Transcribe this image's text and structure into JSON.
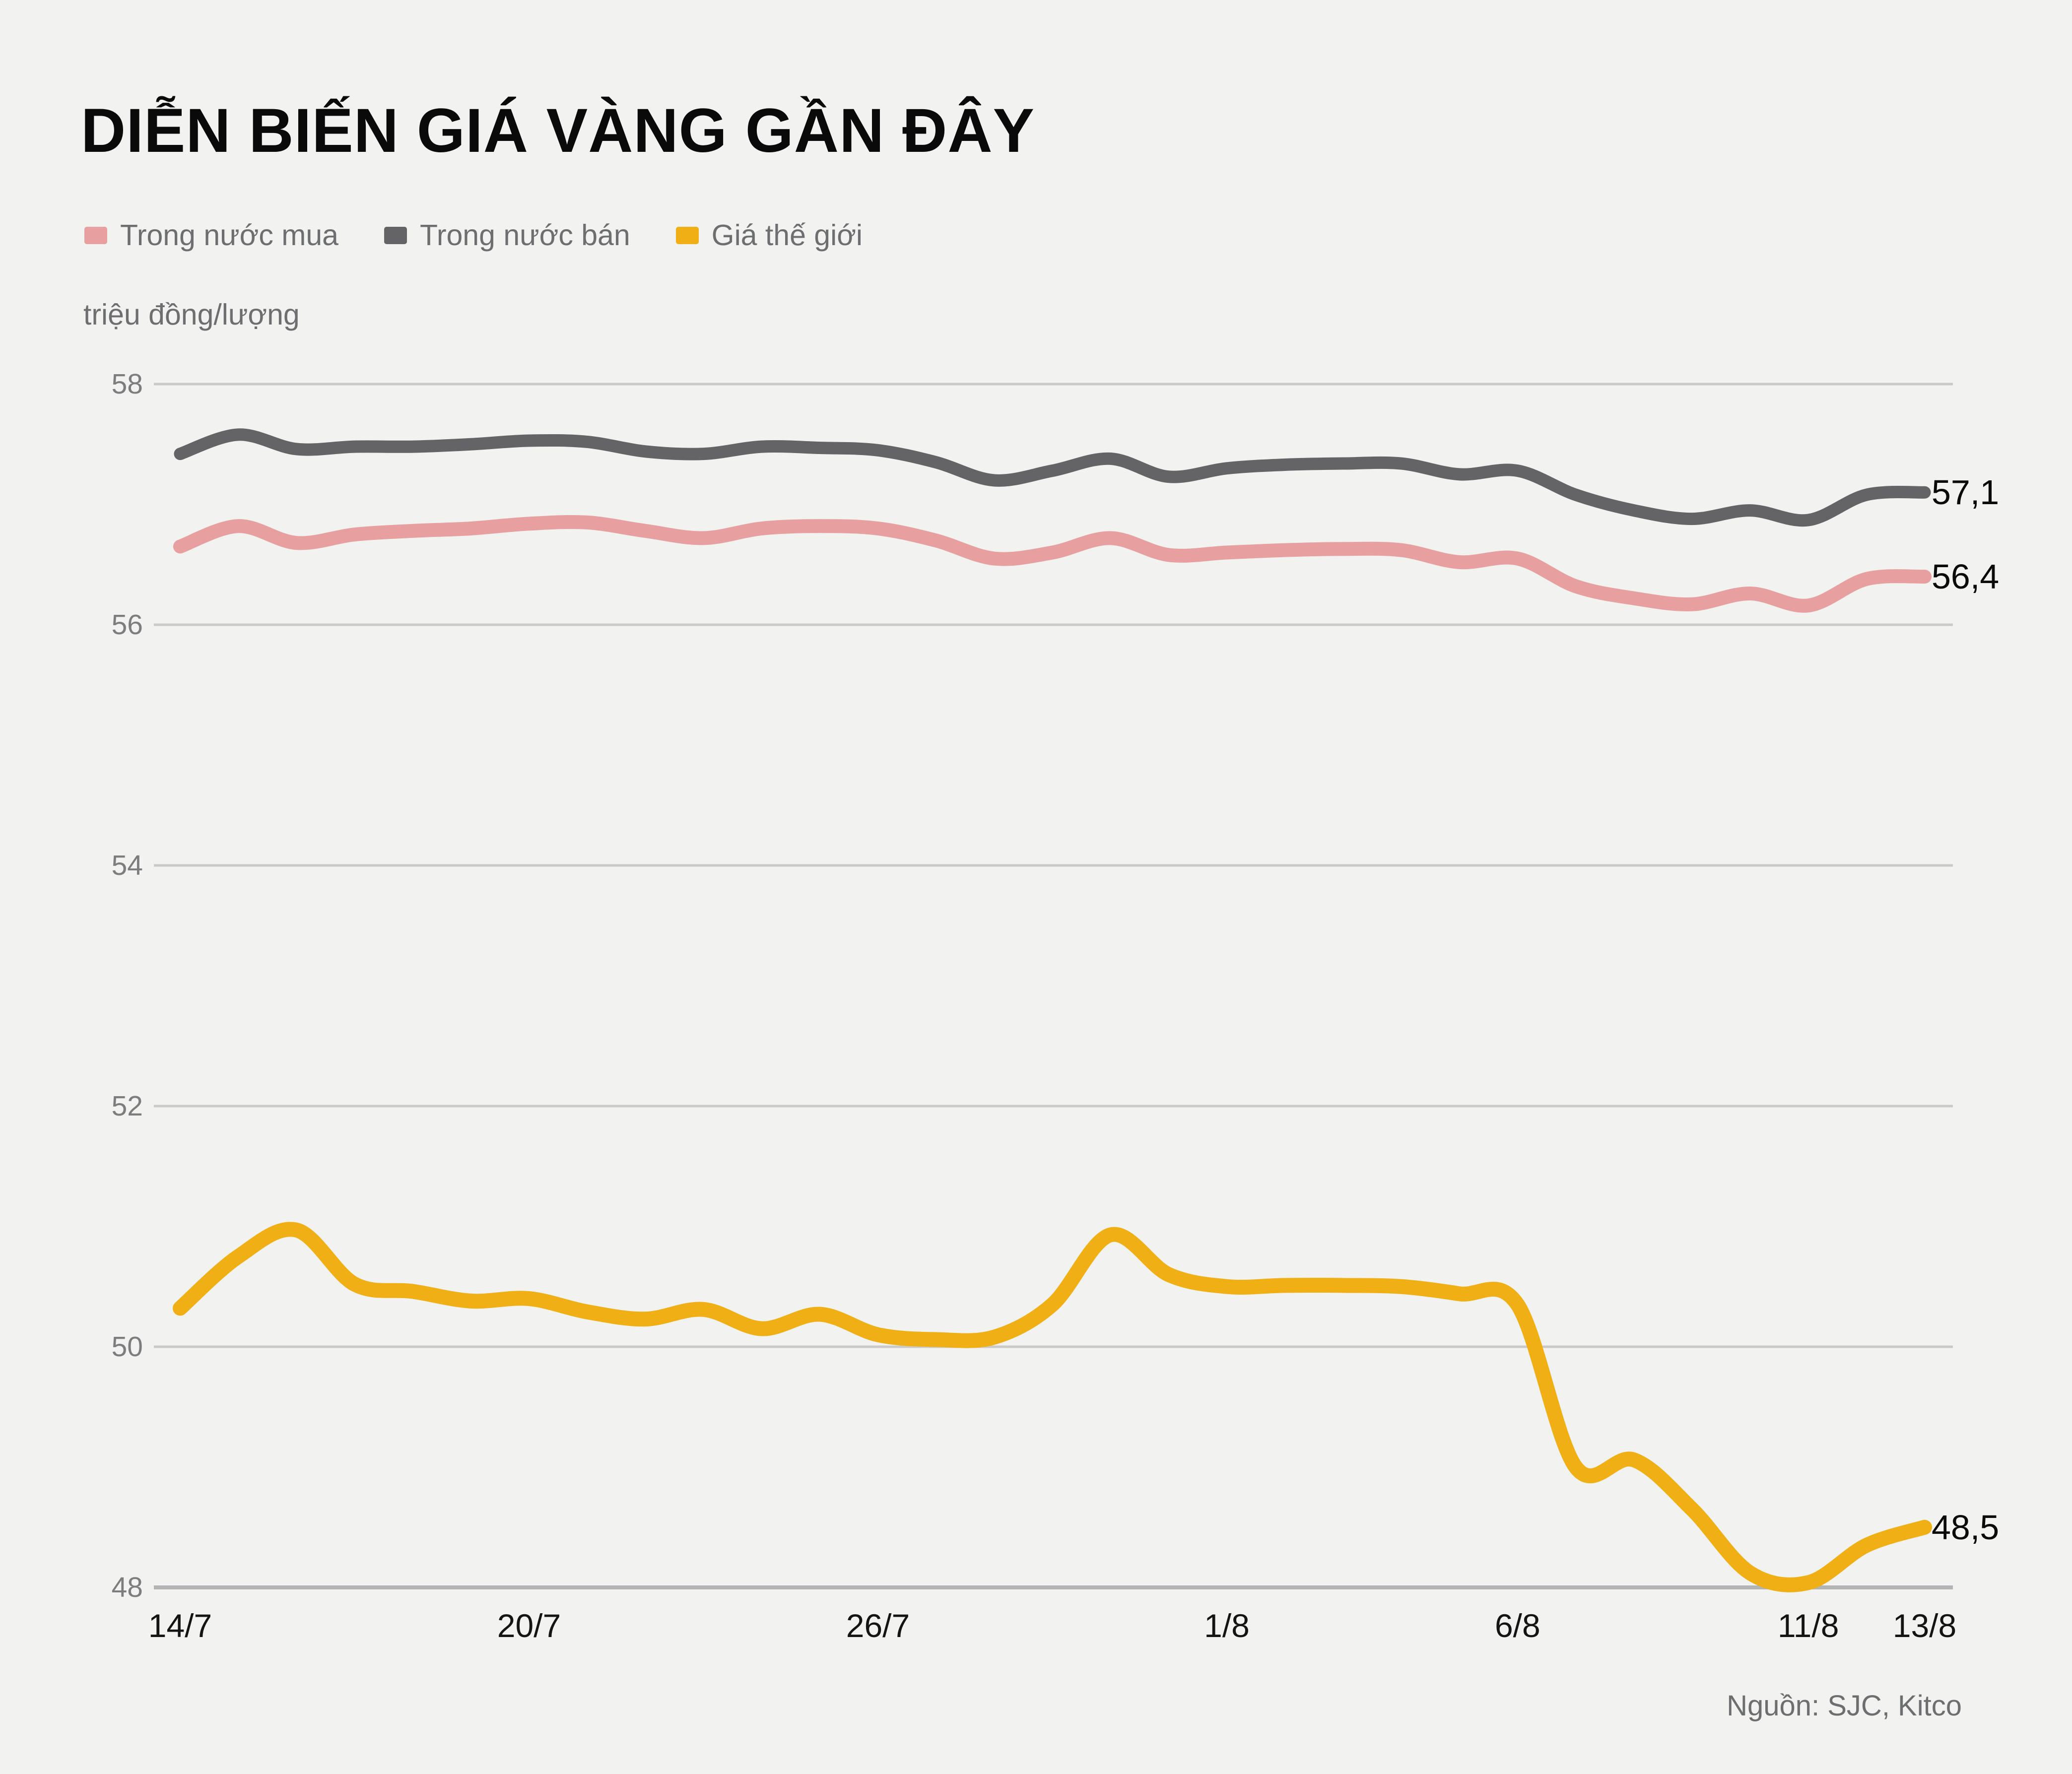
{
  "title": "DIỄN BIẾN GIÁ VÀNG GẦN ĐÂY",
  "unit_label": "triệu đồng/lượng",
  "source": "Nguồn: SJC, Kitco",
  "colors": {
    "background": "#f2f2f0",
    "gridline": "#c9cac8",
    "axis_line": "#b3b4b6",
    "y_tick_text": "#7c7d7f",
    "x_tick_text": "#141414",
    "legend_text": "#6d6e70"
  },
  "chart_data": {
    "type": "line",
    "title": "DIỄN BIẾN GIÁ VÀNG GẦN ĐÂY",
    "ylabel": "triệu đồng/lượng",
    "ylim": [
      48,
      58
    ],
    "yticks": [
      58,
      56,
      54,
      52,
      50,
      48
    ],
    "xticks": [
      "14/7",
      "20/7",
      "26/7",
      "1/8",
      "6/8",
      "11/8",
      "13/8"
    ],
    "grid": "horizontal",
    "legend_position": "top-left",
    "categories": [
      "14/7",
      "15/7",
      "16/7",
      "17/7",
      "18/7",
      "19/7",
      "20/7",
      "21/7",
      "22/7",
      "23/7",
      "24/7",
      "25/7",
      "26/7",
      "27/7",
      "28/7",
      "29/7",
      "30/7",
      "31/7",
      "1/8",
      "2/8",
      "3/8",
      "4/8",
      "5/8",
      "6/8",
      "7/8",
      "8/8",
      "9/8",
      "10/8",
      "11/8",
      "12/8",
      "13/8"
    ],
    "series": [
      {
        "name": "Trong nước mua",
        "color": "#e89f9f",
        "stroke_width": 28,
        "end_label": "56,4",
        "values": [
          56.65,
          56.82,
          56.68,
          56.75,
          56.78,
          56.8,
          56.84,
          56.85,
          56.78,
          56.72,
          56.8,
          56.82,
          56.8,
          56.7,
          56.55,
          56.6,
          56.72,
          56.58,
          56.6,
          56.62,
          56.63,
          56.62,
          56.52,
          56.55,
          56.32,
          56.22,
          56.17,
          56.26,
          56.16,
          56.38,
          56.4
        ]
      },
      {
        "name": "Trong nước bán",
        "color": "#646466",
        "stroke_width": 25,
        "end_label": "57,1",
        "values": [
          57.42,
          57.58,
          57.46,
          57.48,
          57.48,
          57.5,
          57.53,
          57.52,
          57.44,
          57.42,
          57.48,
          57.47,
          57.45,
          57.35,
          57.2,
          57.28,
          57.38,
          57.23,
          57.3,
          57.33,
          57.34,
          57.34,
          57.25,
          57.28,
          57.08,
          56.95,
          56.88,
          56.95,
          56.87,
          57.08,
          57.1
        ]
      },
      {
        "name": "Giá thế giới",
        "color": "#f0af14",
        "stroke_width": 30,
        "end_label": "48,5",
        "values": [
          50.32,
          50.75,
          50.97,
          50.52,
          50.46,
          50.38,
          50.4,
          50.29,
          50.23,
          50.31,
          50.15,
          50.27,
          50.1,
          50.06,
          50.08,
          50.35,
          50.93,
          50.6,
          50.5,
          50.51,
          50.51,
          50.5,
          50.44,
          50.35,
          49.0,
          49.06,
          48.65,
          48.12,
          48.04,
          48.35,
          48.5
        ]
      }
    ]
  }
}
